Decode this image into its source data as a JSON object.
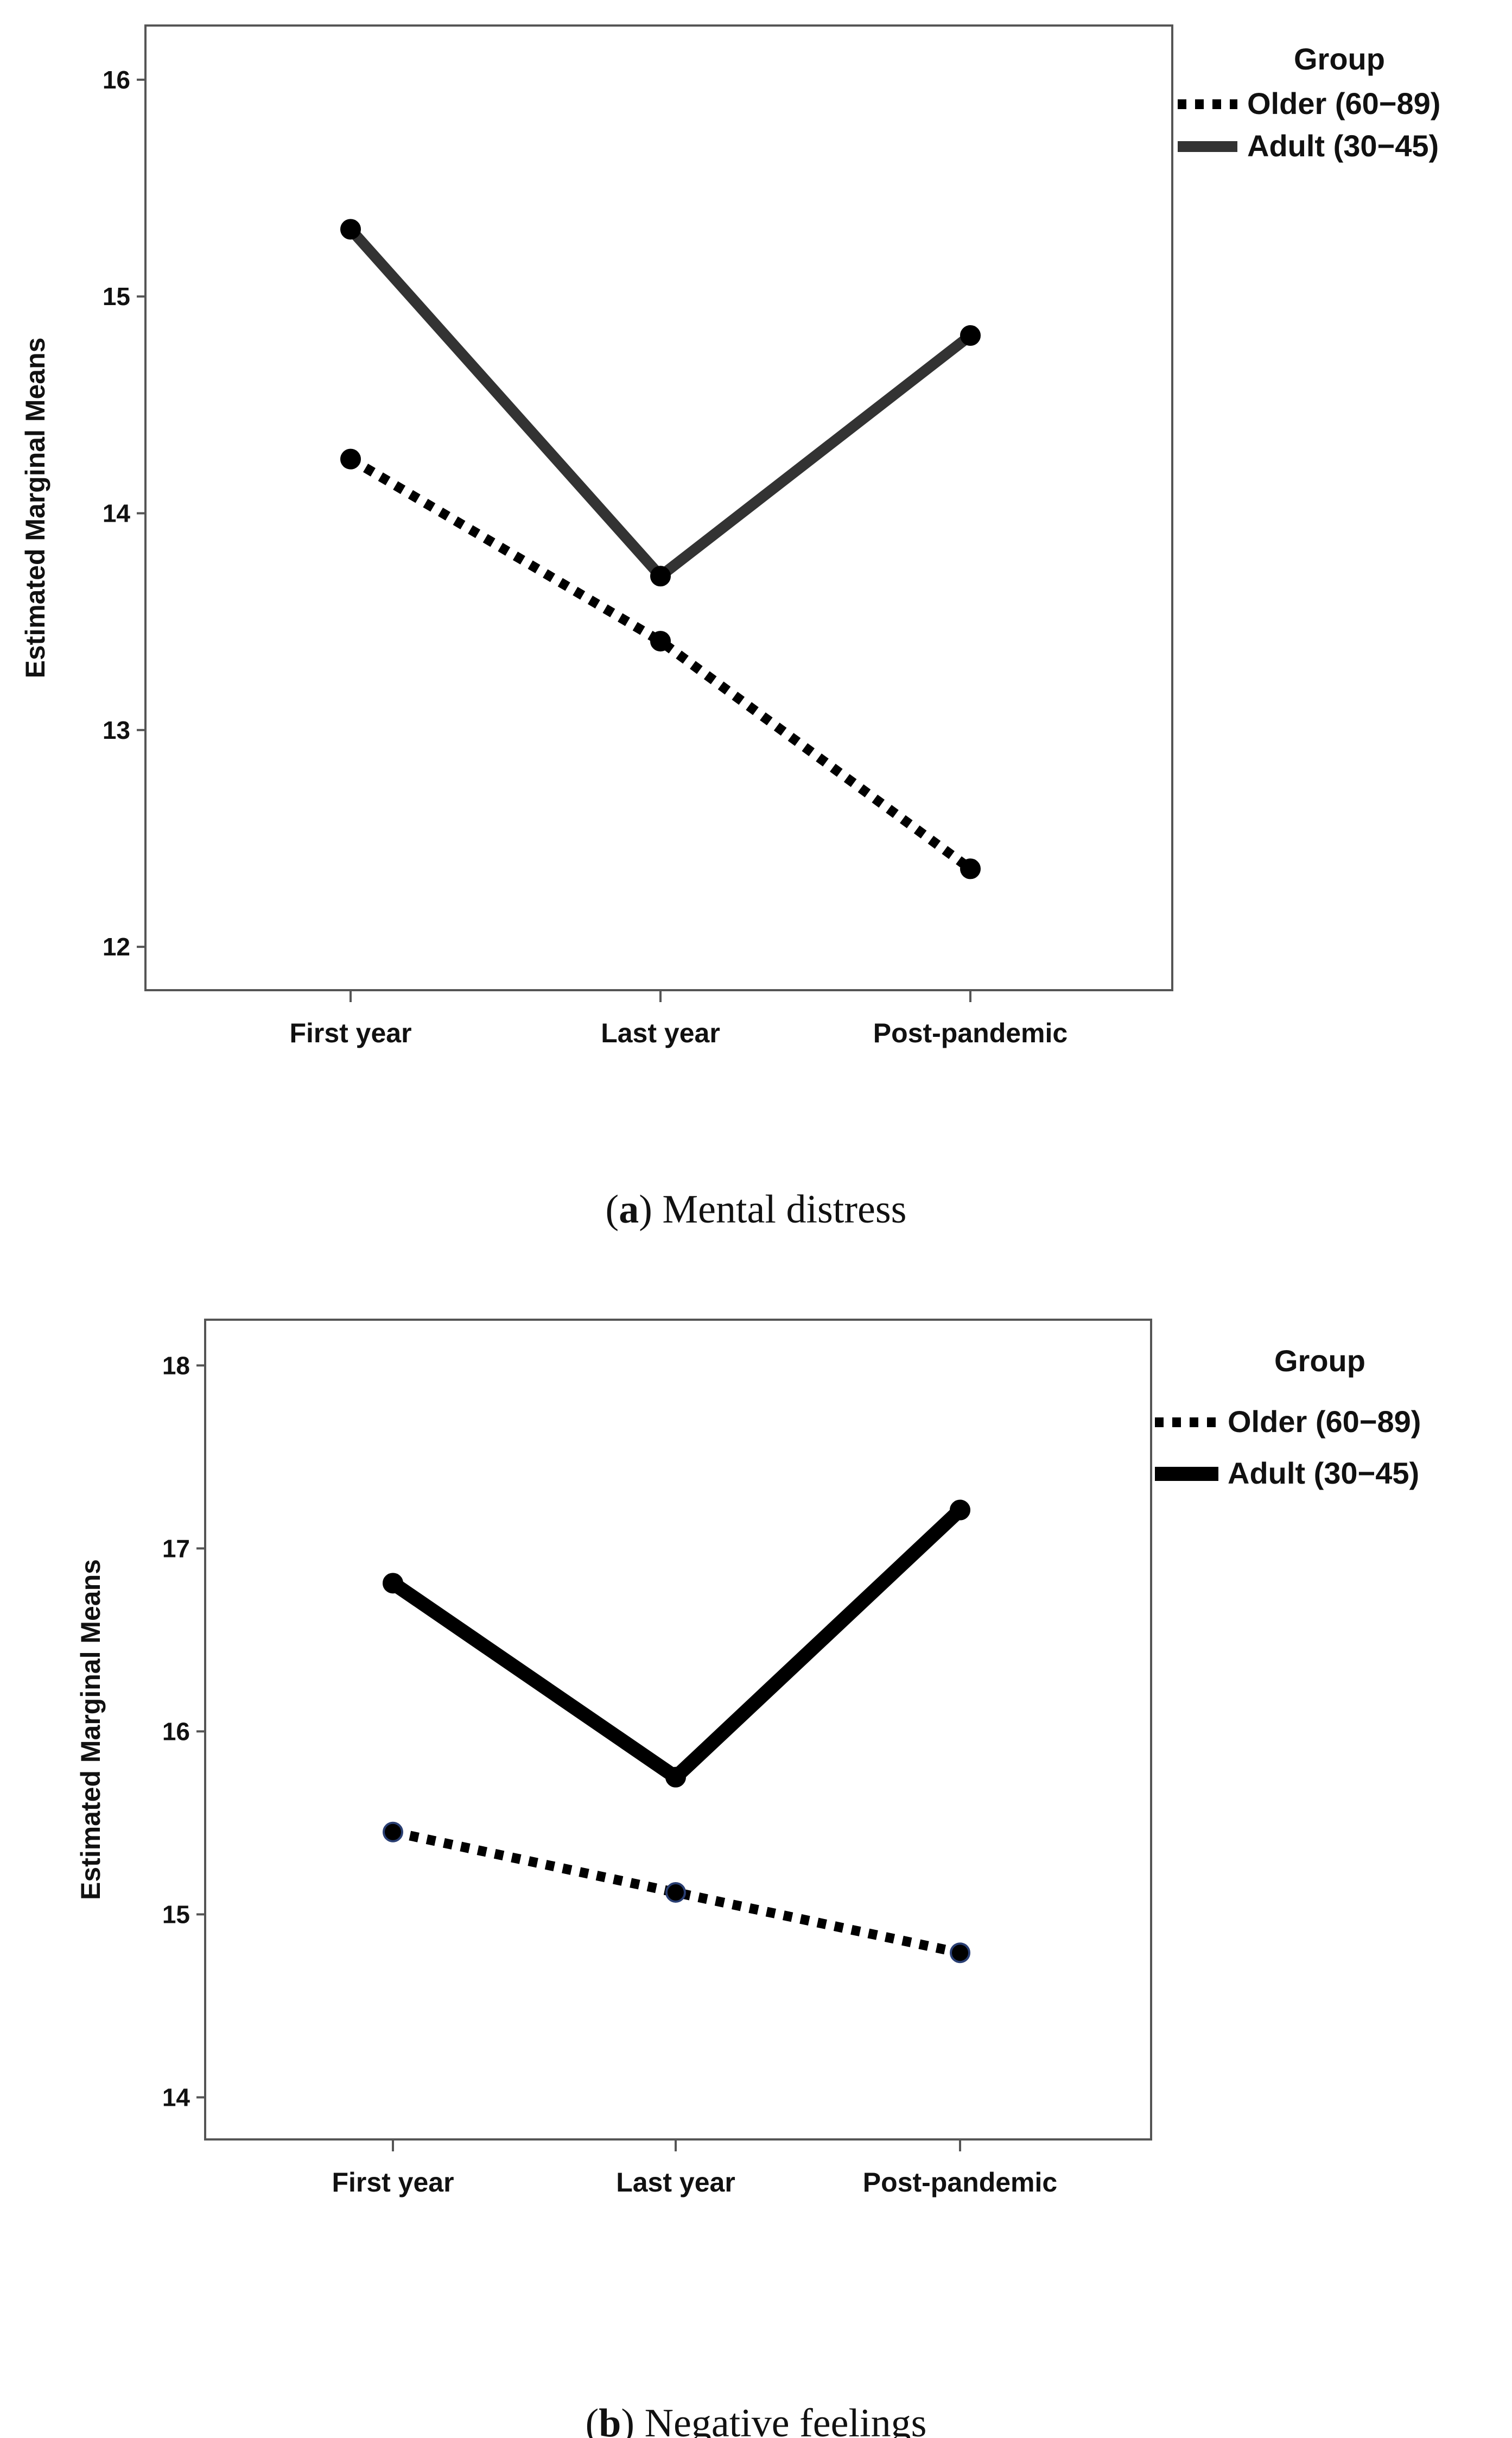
{
  "chart_data": [
    {
      "type": "line",
      "panel": "a",
      "caption_letter": "a",
      "caption_text": "Mental distress",
      "title": "",
      "xlabel": "",
      "ylabel": "Estimated Marginal Means",
      "categories": [
        "First year",
        "Last year",
        "Post-pandemic"
      ],
      "ylim": [
        11.8,
        16.25
      ],
      "yticks": [
        12,
        13,
        14,
        15,
        16
      ],
      "legend_title": "Group",
      "legend_position": "right",
      "series": [
        {
          "name": "Older (60−89)",
          "style": "dotted",
          "color": "#000000",
          "values": [
            14.25,
            13.41,
            12.36
          ]
        },
        {
          "name": "Adult (30−45)",
          "style": "solid",
          "color": "#333333",
          "values": [
            15.31,
            13.71,
            14.82
          ]
        }
      ]
    },
    {
      "type": "line",
      "panel": "b",
      "caption_letter": "b",
      "caption_text": "Negative feelings",
      "title": "",
      "xlabel": "",
      "ylabel": "Estimated Marginal Means",
      "categories": [
        "First year",
        "Last year",
        "Post-pandemic"
      ],
      "ylim": [
        13.77,
        18.25
      ],
      "yticks": [
        14,
        15,
        16,
        17,
        18
      ],
      "legend_title": "Group",
      "legend_position": "right",
      "series": [
        {
          "name": "Older (60−89)",
          "style": "dotted",
          "color": "#000000",
          "values": [
            15.45,
            15.12,
            14.79
          ]
        },
        {
          "name": "Adult (30−45)",
          "style": "solid",
          "color": "#000000",
          "values": [
            16.81,
            15.75,
            17.21
          ]
        }
      ]
    }
  ]
}
